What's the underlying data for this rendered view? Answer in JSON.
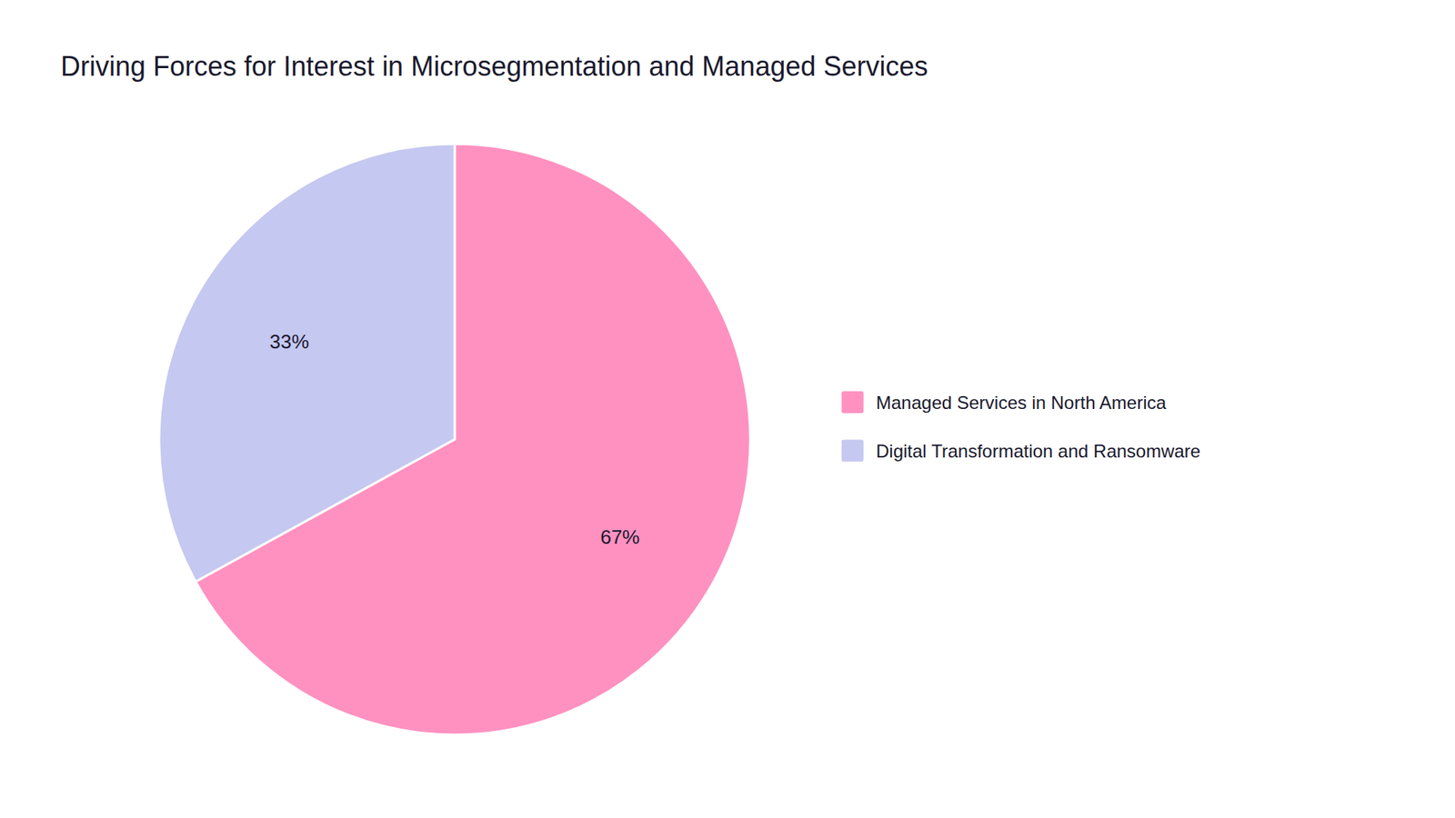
{
  "chart_data": {
    "type": "pie",
    "title": "Driving Forces for Interest in Microsegmentation and Managed Services",
    "categories": [
      "Managed Services in North America",
      "Digital Transformation and Ransomware"
    ],
    "values": [
      67,
      33
    ],
    "value_labels": [
      "67%",
      "33%"
    ],
    "colors": [
      "#FF91C1",
      "#C5C8F0"
    ],
    "data_labels": true,
    "legend": "right"
  }
}
